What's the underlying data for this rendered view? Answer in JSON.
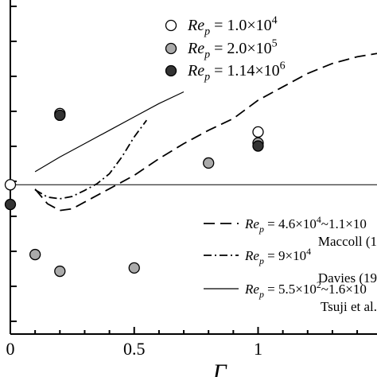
{
  "chart_data": {
    "type": "scatter",
    "xlabel": "Γ",
    "ylabel": "",
    "xlim": [
      0.0,
      1.48
    ],
    "ylim": [
      0.0,
      1.0
    ],
    "x_ticks": [
      0.0,
      0.5,
      1.0
    ],
    "x_tick_labels": [
      "0",
      "0.5",
      "1"
    ],
    "grid": false,
    "reference_line_y": 0.447,
    "legend_top": {
      "position": "top-left",
      "entries": [
        {
          "symbol": "open-circle",
          "prefix": "Re",
          "sub": "p",
          "text": " = 1.0×10",
          "sup": "4"
        },
        {
          "symbol": "gray-circle",
          "prefix": "Re",
          "sub": "p",
          "text": " = 2.0×10",
          "sup": "5"
        },
        {
          "symbol": "black-circle",
          "prefix": "Re",
          "sub": "p",
          "text": " = 1.14×10",
          "sup": "6"
        }
      ]
    },
    "legend_bottom": {
      "position": "bottom-right",
      "entries": [
        {
          "line": "dashed",
          "prefix": "Re",
          "sub": "p",
          "eq": " = 4.6×10",
          "sup1": "4",
          "mid": "~1.1×10",
          "sup2": "",
          "source": "Maccoll (1"
        },
        {
          "line": "dashdot",
          "prefix": "Re",
          "sub": "p",
          "eq": " = 9×10",
          "sup1": "4",
          "mid": "",
          "sup2": "",
          "source": "Davies (19"
        },
        {
          "line": "solid",
          "prefix": "Re",
          "sub": "p",
          "eq": " = 5.5×10",
          "sup1": "2",
          "mid": "~1.6×10",
          "sup2": "",
          "source": "Tsuji et al."
        }
      ]
    },
    "series": [
      {
        "kind": "points",
        "marker": "open",
        "fill": "#ffffff",
        "x": [
          0.0,
          0.2,
          1.0
        ],
        "y": [
          0.447,
          0.66,
          0.605
        ]
      },
      {
        "kind": "points",
        "marker": "gray",
        "fill": "#aaaaaa",
        "x": [
          0.1,
          0.2,
          0.5,
          0.8,
          1.0
        ],
        "y": [
          0.238,
          0.188,
          0.198,
          0.512,
          0.572
        ]
      },
      {
        "kind": "points",
        "marker": "black",
        "fill": "#333333",
        "x": [
          0.0,
          0.2,
          1.0
        ],
        "y": [
          0.388,
          0.655,
          0.563
        ]
      },
      {
        "kind": "line",
        "style": "dashed",
        "x": [
          0.1,
          0.15,
          0.2,
          0.25,
          0.3,
          0.4,
          0.5,
          0.6,
          0.7,
          0.8,
          0.9,
          1.0,
          1.1,
          1.2,
          1.3,
          1.4,
          1.48
        ],
        "y": [
          0.434,
          0.39,
          0.37,
          0.375,
          0.395,
          0.435,
          0.475,
          0.525,
          0.57,
          0.61,
          0.645,
          0.7,
          0.74,
          0.78,
          0.81,
          0.83,
          0.84
        ]
      },
      {
        "kind": "line",
        "style": "dashdot",
        "x": [
          0.1,
          0.15,
          0.2,
          0.25,
          0.3,
          0.35,
          0.4,
          0.45,
          0.5,
          0.55
        ],
        "y": [
          0.432,
          0.41,
          0.405,
          0.412,
          0.43,
          0.45,
          0.48,
          0.53,
          0.59,
          0.64
        ]
      },
      {
        "kind": "line",
        "style": "solid",
        "x": [
          0.1,
          0.2,
          0.3,
          0.4,
          0.5,
          0.6,
          0.7
        ],
        "y": [
          0.486,
          0.53,
          0.57,
          0.61,
          0.65,
          0.69,
          0.725
        ]
      }
    ]
  }
}
